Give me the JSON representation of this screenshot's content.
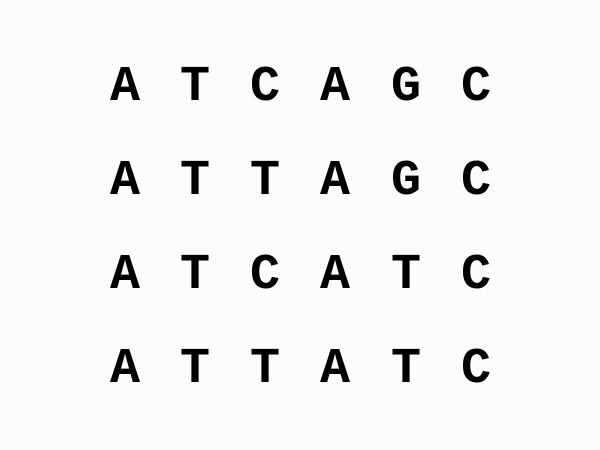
{
  "sequences": [
    {
      "bases": [
        "A",
        "T",
        "C",
        "A",
        "G",
        "C"
      ]
    },
    {
      "bases": [
        "A",
        "T",
        "T",
        "A",
        "G",
        "C"
      ]
    },
    {
      "bases": [
        "A",
        "T",
        "C",
        "A",
        "T",
        "C"
      ]
    },
    {
      "bases": [
        "A",
        "T",
        "T",
        "A",
        "T",
        "C"
      ]
    }
  ],
  "colors": {
    "background": "#fdfcfd",
    "text": "#000000"
  }
}
